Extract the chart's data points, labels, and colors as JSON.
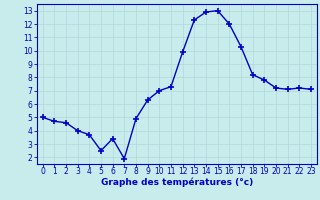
{
  "hours": [
    0,
    1,
    2,
    3,
    4,
    5,
    6,
    7,
    8,
    9,
    10,
    11,
    12,
    13,
    14,
    15,
    16,
    17,
    18,
    19,
    20,
    21,
    22,
    23
  ],
  "temps": [
    5.0,
    4.7,
    4.6,
    4.0,
    3.7,
    2.5,
    3.4,
    1.9,
    4.9,
    6.3,
    7.0,
    7.3,
    9.9,
    12.3,
    12.9,
    13.0,
    12.0,
    10.3,
    8.2,
    7.8,
    7.2,
    7.1,
    7.2,
    7.1
  ],
  "line_color": "#0000cc",
  "marker": "+",
  "marker_size": 4.0,
  "marker_lw": 1.2,
  "bg_color": "#c8ecec",
  "grid_color": "#b0d8d8",
  "xlabel": "Graphe des températures (°c)",
  "xlabel_color": "#0000cc",
  "xlabel_fontsize": 6.5,
  "tick_color": "#0000cc",
  "tick_fontsize": 5.5,
  "ylim": [
    1.5,
    13.5
  ],
  "yticks": [
    2,
    3,
    4,
    5,
    6,
    7,
    8,
    9,
    10,
    11,
    12,
    13
  ],
  "xlim": [
    -0.5,
    23.5
  ],
  "xticks": [
    0,
    1,
    2,
    3,
    4,
    5,
    6,
    7,
    8,
    9,
    10,
    11,
    12,
    13,
    14,
    15,
    16,
    17,
    18,
    19,
    20,
    21,
    22,
    23
  ],
  "spine_color": "#0000cc",
  "linewidth": 1.0,
  "grid_linewidth": 0.5
}
